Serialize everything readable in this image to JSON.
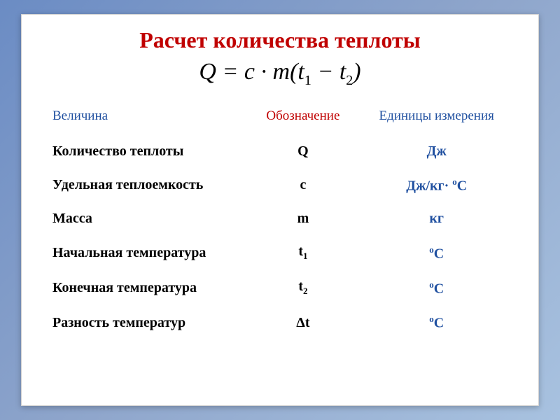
{
  "title": "Расчет количества теплоты",
  "formula": {
    "Q": "Q",
    "eq": " = ",
    "c": "c",
    "dot": " · ",
    "m": "m",
    "open": "(",
    "t1": "t",
    "s1": "1",
    "minus": " − ",
    "t2": "t",
    "s2": "2",
    "close": ")"
  },
  "headers": {
    "col1": "Величина",
    "col2": "Обозначение",
    "col3": "Единицы измерения"
  },
  "rows": [
    {
      "name": "Количество теплоты",
      "symbol": "Q",
      "sub": "",
      "unit": "Дж",
      "unit_sup": ""
    },
    {
      "name": "Удельная теплоемкость",
      "symbol": "c",
      "sub": "",
      "unit": "Дж/кг· ",
      "unit_sup": "о",
      "unit_tail": "С"
    },
    {
      "name": "Масса",
      "symbol": "m",
      "sub": "",
      "unit": "кг",
      "unit_sup": ""
    },
    {
      "name": "Начальная температура",
      "symbol": "t",
      "sub": "1",
      "unit": "",
      "unit_sup": "о",
      "unit_tail": "С"
    },
    {
      "name": "Конечная  температура",
      "symbol": "t",
      "sub": "2",
      "unit": "",
      "unit_sup": "о",
      "unit_tail": "С"
    },
    {
      "name": "Разность температур",
      "symbol": "Δt",
      "sub": "",
      "unit": "",
      "unit_sup": "о",
      "unit_tail": "С"
    }
  ],
  "style": {
    "title_color": "#c00000",
    "header_blue": "#2050a0",
    "text_black": "#000000",
    "unit_blue": "#2050a0",
    "card_bg": "#ffffff",
    "title_fontsize": 32,
    "formula_fontsize": 34,
    "header_fontsize": 19,
    "cell_fontsize": 20
  }
}
